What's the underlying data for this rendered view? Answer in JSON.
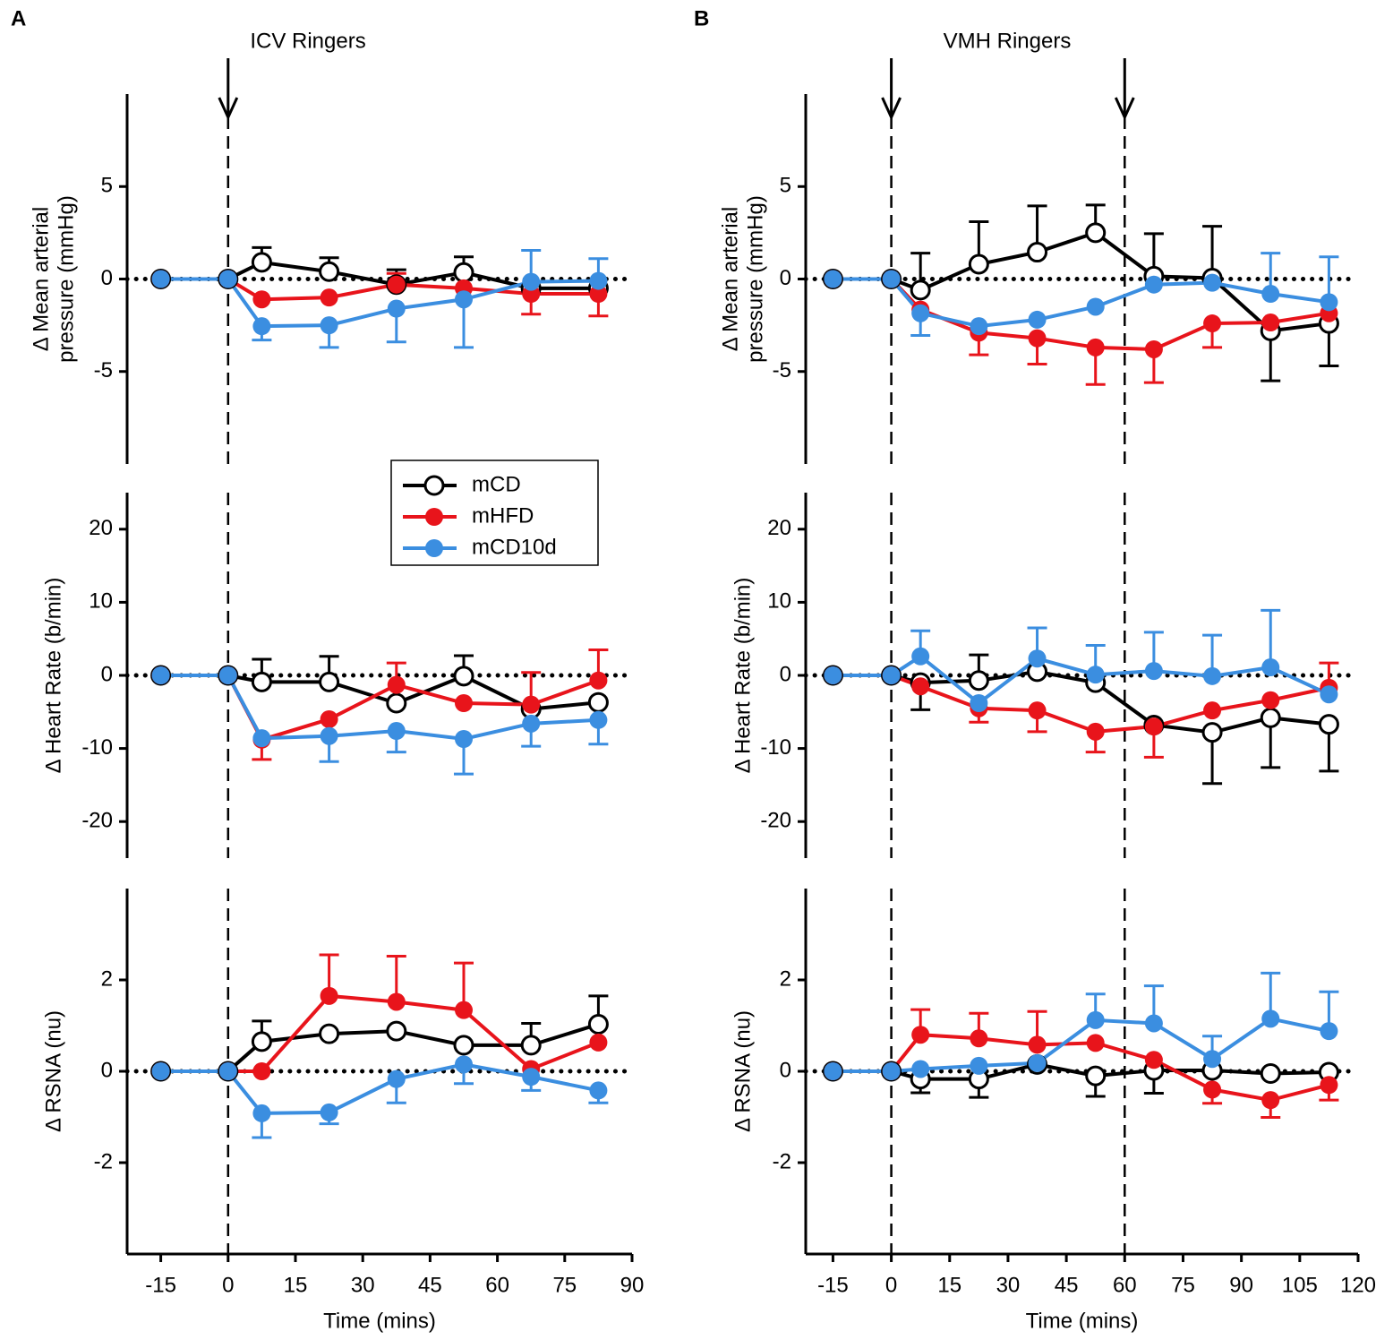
{
  "chart_data": [
    {
      "type": "line",
      "panel": "A",
      "title": "ICV Ringers",
      "ylabel": [
        "Δ Mean arterial",
        "pressure (mmHg)"
      ],
      "x": [
        -15,
        0,
        7.5,
        22.5,
        37.5,
        52.5,
        67.5,
        82.5
      ],
      "xlim": [
        -22.5,
        90
      ],
      "ylim": [
        -10,
        10
      ],
      "yticks": [
        -5,
        0,
        5
      ],
      "vlines": [
        0
      ],
      "arrows": true,
      "hline": 0,
      "series": [
        {
          "name": "mCD",
          "color": "#000000",
          "marker": "open",
          "values": [
            0,
            0,
            0.9,
            0.4,
            -0.3,
            0.35,
            -0.5,
            -0.5
          ],
          "errors": [
            null,
            null,
            0.8,
            0.75,
            0.8,
            0.85,
            null,
            null
          ],
          "error_sides": [
            null,
            null,
            "up",
            "up",
            "up",
            "up",
            null,
            null
          ]
        },
        {
          "name": "mHFD",
          "color": "#e8141b",
          "marker": "filled",
          "values": [
            0,
            0,
            -1.1,
            -1.0,
            -0.3,
            -0.5,
            -0.8,
            -0.8
          ],
          "errors": [
            null,
            null,
            null,
            null,
            0.6,
            null,
            1.1,
            1.2
          ],
          "error_sides": [
            null,
            null,
            null,
            null,
            "up",
            null,
            "down",
            "down"
          ]
        },
        {
          "name": "mCD10d",
          "color": "#3b8ee0",
          "marker": "filled",
          "values": [
            0,
            0,
            -2.55,
            -2.5,
            -1.6,
            -1.1,
            -0.15,
            -0.1
          ],
          "errors": [
            null,
            null,
            0.75,
            1.2,
            1.8,
            2.6,
            1.7,
            1.2
          ],
          "error_sides": [
            null,
            null,
            "down",
            "down",
            "down",
            "down",
            "up",
            "up"
          ]
        }
      ]
    },
    {
      "type": "line",
      "ylabel": [
        "Δ Heart Rate (b/min)"
      ],
      "x": [
        -15,
        0,
        7.5,
        22.5,
        37.5,
        52.5,
        67.5,
        82.5
      ],
      "xlim": [
        -22.5,
        90
      ],
      "ylim": [
        -25,
        25
      ],
      "yticks": [
        -20,
        -10,
        0,
        10,
        20
      ],
      "vlines": [
        0
      ],
      "hline": 0,
      "legend": "upper right",
      "series": [
        {
          "name": "mCD",
          "color": "#000000",
          "marker": "open",
          "values": [
            0,
            0,
            -0.9,
            -0.9,
            -3.8,
            -0.1,
            -4.6,
            -3.7
          ],
          "errors": [
            null,
            null,
            3.1,
            3.5,
            null,
            2.8,
            null,
            null
          ],
          "error_sides": [
            null,
            null,
            "up",
            "up",
            null,
            "up",
            null,
            null
          ]
        },
        {
          "name": "mHFD",
          "color": "#e8141b",
          "marker": "filled",
          "values": [
            0,
            0,
            -8.8,
            -6.0,
            -1.3,
            -3.8,
            -4.0,
            -0.7
          ],
          "errors": [
            null,
            null,
            2.7,
            null,
            3.0,
            null,
            4.4,
            4.2
          ],
          "error_sides": [
            null,
            null,
            "down",
            null,
            "up",
            null,
            "up",
            "up"
          ]
        },
        {
          "name": "mCD10d",
          "color": "#3b8ee0",
          "marker": "filled",
          "values": [
            0,
            0,
            -8.6,
            -8.3,
            -7.6,
            -8.7,
            -6.6,
            -6.1
          ],
          "errors": [
            null,
            null,
            null,
            3.5,
            2.9,
            4.8,
            3.1,
            3.3
          ],
          "error_sides": [
            null,
            null,
            null,
            "down",
            "down",
            "down",
            "down",
            "down"
          ]
        }
      ]
    },
    {
      "type": "line",
      "ylabel": [
        "Δ RSNA (nu)"
      ],
      "xlabel": "Time (mins)",
      "x": [
        -15,
        0,
        7.5,
        22.5,
        37.5,
        52.5,
        67.5,
        82.5
      ],
      "xlim": [
        -22.5,
        90
      ],
      "xticks": [
        -15,
        0,
        15,
        30,
        45,
        60,
        75,
        90
      ],
      "ylim": [
        -4,
        4
      ],
      "yticks": [
        -2,
        0,
        2
      ],
      "vlines": [
        0
      ],
      "hline": 0,
      "series": [
        {
          "name": "mCD",
          "color": "#000000",
          "marker": "open",
          "values": [
            0,
            0,
            0.65,
            0.82,
            0.88,
            0.57,
            0.57,
            1.03
          ],
          "errors": [
            null,
            null,
            0.45,
            null,
            null,
            null,
            0.48,
            0.62
          ],
          "error_sides": [
            null,
            null,
            "up",
            null,
            null,
            null,
            "up",
            "up"
          ]
        },
        {
          "name": "mHFD",
          "color": "#e8141b",
          "marker": "filled",
          "values": [
            0,
            0,
            0,
            1.65,
            1.52,
            1.34,
            0.05,
            0.63
          ],
          "errors": [
            null,
            null,
            null,
            0.9,
            1.0,
            1.03,
            null,
            null
          ],
          "error_sides": [
            null,
            null,
            null,
            "up",
            "up",
            "up",
            null,
            null
          ]
        },
        {
          "name": "mCD10d",
          "color": "#3b8ee0",
          "marker": "filled",
          "values": [
            0,
            0,
            -0.92,
            -0.9,
            -0.17,
            0.15,
            -0.12,
            -0.42
          ],
          "errors": [
            null,
            null,
            0.53,
            0.25,
            0.52,
            0.42,
            0.3,
            0.27
          ],
          "error_sides": [
            null,
            null,
            "down",
            "down",
            "down",
            "down",
            "down",
            "down"
          ]
        }
      ]
    },
    {
      "type": "line",
      "panel": "B",
      "title": "VMH Ringers",
      "ylabel": [
        "Δ Mean arterial",
        "pressure (mmHg)"
      ],
      "x": [
        -15,
        0,
        7.5,
        22.5,
        37.5,
        52.5,
        67.5,
        82.5,
        97.5,
        112.5
      ],
      "xlim": [
        -22,
        120
      ],
      "ylim": [
        -10,
        10
      ],
      "yticks": [
        -5,
        0,
        5
      ],
      "vlines": [
        0,
        60
      ],
      "arrows": true,
      "hline": 0,
      "series": [
        {
          "name": "mCD",
          "color": "#000000",
          "marker": "open",
          "values": [
            0,
            0,
            -0.6,
            0.8,
            1.45,
            2.5,
            0.15,
            0.05,
            -2.8,
            -2.4
          ],
          "errors": [
            null,
            null,
            2.0,
            2.3,
            2.5,
            1.5,
            2.3,
            2.8,
            2.7,
            2.3
          ],
          "error_sides": [
            null,
            null,
            "up",
            "up",
            "up",
            "up",
            "up",
            "up",
            "down",
            "down"
          ]
        },
        {
          "name": "mHFD",
          "color": "#e8141b",
          "marker": "filled",
          "values": [
            0,
            0,
            -1.65,
            -2.9,
            -3.2,
            -3.7,
            -3.8,
            -2.4,
            -2.35,
            -1.85
          ],
          "errors": [
            null,
            null,
            null,
            1.2,
            1.4,
            2.0,
            1.8,
            1.3,
            null,
            null
          ],
          "error_sides": [
            null,
            null,
            null,
            "down",
            "down",
            "down",
            "down",
            "down",
            null,
            null
          ]
        },
        {
          "name": "mCD10d",
          "color": "#3b8ee0",
          "marker": "filled",
          "values": [
            0,
            0,
            -1.85,
            -2.55,
            -2.2,
            -1.5,
            -0.3,
            -0.2,
            -0.8,
            -1.25
          ],
          "errors": [
            null,
            null,
            1.2,
            null,
            null,
            null,
            null,
            null,
            2.2,
            2.45
          ],
          "error_sides": [
            null,
            null,
            "down",
            null,
            null,
            null,
            null,
            null,
            "up",
            "up"
          ]
        }
      ]
    },
    {
      "type": "line",
      "ylabel": [
        "Δ Heart Rate (b/min)"
      ],
      "x": [
        -15,
        0,
        7.5,
        22.5,
        37.5,
        52.5,
        67.5,
        82.5,
        97.5,
        112.5
      ],
      "xlim": [
        -22,
        120
      ],
      "ylim": [
        -25,
        25
      ],
      "yticks": [
        -20,
        -10,
        0,
        10,
        20
      ],
      "vlines": [
        0,
        60
      ],
      "hline": 0,
      "series": [
        {
          "name": "mCD",
          "color": "#000000",
          "marker": "open",
          "values": [
            0,
            0,
            -1.0,
            -0.7,
            0.5,
            -1.0,
            -6.8,
            -7.8,
            -5.8,
            -6.7
          ],
          "errors": [
            null,
            null,
            3.7,
            3.5,
            null,
            null,
            null,
            7.0,
            6.8,
            6.4
          ],
          "error_sides": [
            null,
            null,
            "down",
            "up",
            null,
            null,
            null,
            "down",
            "down",
            "down"
          ]
        },
        {
          "name": "mHFD",
          "color": "#e8141b",
          "marker": "filled",
          "values": [
            0,
            0,
            -1.5,
            -4.5,
            -4.8,
            -7.7,
            -7.0,
            -4.8,
            -3.4,
            -1.7
          ],
          "errors": [
            null,
            null,
            null,
            1.9,
            2.9,
            2.8,
            4.2,
            null,
            null,
            3.4
          ],
          "error_sides": [
            null,
            null,
            null,
            "down",
            "down",
            "down",
            "down",
            null,
            null,
            "up"
          ]
        },
        {
          "name": "mCD10d",
          "color": "#3b8ee0",
          "marker": "filled",
          "values": [
            0,
            0,
            2.6,
            -3.8,
            2.3,
            0.1,
            0.6,
            -0.1,
            1.1,
            -2.6
          ],
          "errors": [
            null,
            null,
            3.5,
            null,
            4.2,
            4.0,
            5.3,
            5.6,
            7.8,
            null
          ],
          "error_sides": [
            null,
            null,
            "up",
            null,
            "up",
            "up",
            "up",
            "up",
            "up",
            null
          ]
        }
      ]
    },
    {
      "type": "line",
      "ylabel": [
        "Δ RSNA (nu)"
      ],
      "xlabel": "Time (mins)",
      "x": [
        -15,
        0,
        7.5,
        22.5,
        37.5,
        52.5,
        67.5,
        82.5,
        97.5,
        112.5
      ],
      "xlim": [
        -22,
        120
      ],
      "xticks": [
        -15,
        0,
        15,
        30,
        45,
        60,
        75,
        90,
        105,
        120
      ],
      "ylim": [
        -4,
        4
      ],
      "yticks": [
        -2,
        0,
        2
      ],
      "vlines": [
        0,
        60
      ],
      "hline": 0,
      "series": [
        {
          "name": "mCD",
          "color": "#000000",
          "marker": "open",
          "values": [
            0,
            0,
            -0.17,
            -0.17,
            0.15,
            -0.1,
            0.02,
            0.02,
            -0.05,
            -0.02
          ],
          "errors": [
            null,
            null,
            0.3,
            0.4,
            null,
            0.45,
            0.5,
            null,
            null,
            null
          ],
          "error_sides": [
            null,
            null,
            "down",
            "down",
            null,
            "down",
            "down",
            null,
            null,
            null
          ]
        },
        {
          "name": "mHFD",
          "color": "#e8141b",
          "marker": "filled",
          "values": [
            0,
            0,
            0.8,
            0.72,
            0.58,
            0.62,
            0.25,
            -0.4,
            -0.63,
            -0.3
          ],
          "errors": [
            null,
            null,
            0.55,
            0.55,
            0.73,
            null,
            null,
            0.3,
            0.38,
            0.33
          ],
          "error_sides": [
            null,
            null,
            "up",
            "up",
            "up",
            null,
            null,
            "down",
            "down",
            "down"
          ]
        },
        {
          "name": "mCD10d",
          "color": "#3b8ee0",
          "marker": "filled",
          "values": [
            0,
            0,
            0.05,
            0.12,
            0.18,
            1.12,
            1.05,
            0.27,
            1.15,
            0.88
          ],
          "errors": [
            null,
            null,
            null,
            null,
            null,
            0.57,
            0.82,
            0.5,
            1.0,
            0.86
          ],
          "error_sides": [
            null,
            null,
            null,
            null,
            null,
            "up",
            "up",
            "up",
            "up",
            "up"
          ]
        }
      ]
    }
  ]
}
